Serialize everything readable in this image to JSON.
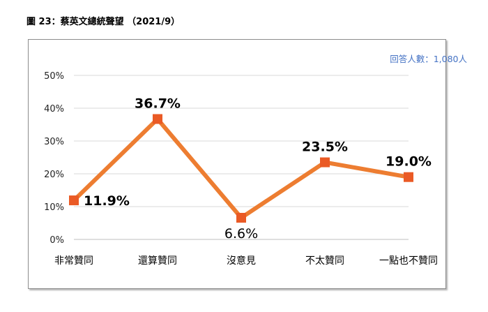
{
  "title": "圖 23：蔡英文總統聲望 （2021/9）",
  "respondents_note": "回答人數：1,080人",
  "colors": {
    "line": "#ed7d31",
    "marker": "#ea5a25",
    "grid": "#d9d9d9",
    "note": "#4472c4"
  },
  "chart_data": {
    "type": "line",
    "categories": [
      "非常贊同",
      "還算贊同",
      "沒意見",
      "不太贊同",
      "一點也不贊同"
    ],
    "values": [
      11.9,
      36.7,
      6.6,
      23.5,
      19.0
    ],
    "value_labels": [
      "11.9%",
      "36.7%",
      "6.6%",
      "23.5%",
      "19.0%"
    ],
    "ylim": [
      0,
      50
    ],
    "yticks": [
      0,
      10,
      20,
      30,
      40,
      50
    ],
    "ytick_labels": [
      "0%",
      "10%",
      "20%",
      "30%",
      "40%",
      "50%"
    ],
    "grid": true,
    "title": "",
    "xlabel": "",
    "ylabel": ""
  }
}
